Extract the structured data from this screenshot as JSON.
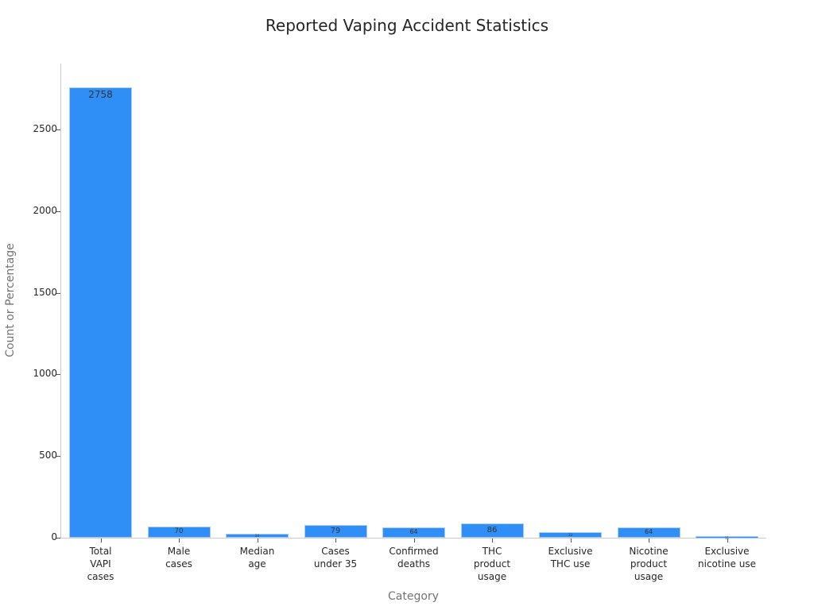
{
  "chart_data": {
    "type": "bar",
    "title": "Reported Vaping Accident Statistics",
    "xlabel": "Category",
    "ylabel": "Count or Percentage",
    "categories": [
      "Total\nVAPI\ncases",
      "Male\ncases",
      "Median\nage",
      "Cases\nunder 35",
      "Confirmed\ndeaths",
      "THC\nproduct\nusage",
      "Exclusive\nTHC use",
      "Nicotine\nproduct\nusage",
      "Exclusive\nnicotine use"
    ],
    "values": [
      2758,
      70,
      24,
      79,
      64,
      86,
      33,
      64,
      11
    ],
    "data_labels": [
      "2758",
      "70",
      "24",
      "79",
      "64",
      "86",
      "33",
      "64",
      "11"
    ],
    "ylim": [
      0,
      2900
    ],
    "yticks": [
      0,
      500,
      1000,
      1500,
      2000,
      2500
    ],
    "ytick_labels": [
      "0",
      "500",
      "1000",
      "1500",
      "2000",
      "2500"
    ],
    "grid": false,
    "legend": null,
    "bar_color": "#2f8ff7"
  }
}
